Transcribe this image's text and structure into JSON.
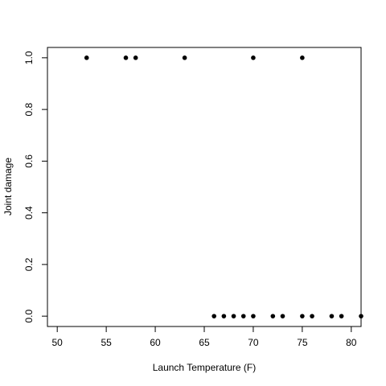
{
  "chart_data": {
    "type": "scatter",
    "title": "",
    "xlabel": "Launch Temperature (F)",
    "ylabel": "Joint damage",
    "xlim": [
      49,
      81
    ],
    "ylim": [
      -0.04,
      1.04
    ],
    "xticks": [
      50,
      55,
      60,
      65,
      70,
      75,
      80
    ],
    "yticks": [
      0.0,
      0.2,
      0.4,
      0.6,
      0.8,
      1.0
    ],
    "xtick_labels": [
      "50",
      "55",
      "60",
      "65",
      "70",
      "75",
      "80"
    ],
    "ytick_labels": [
      "0.0",
      "0.2",
      "0.4",
      "0.6",
      "0.8",
      "1.0"
    ],
    "grid": false,
    "legend": "none",
    "series": [
      {
        "x": [
          53,
          57,
          58,
          63,
          70,
          75,
          66,
          67,
          68,
          69,
          70,
          72,
          73,
          75,
          76,
          78,
          79,
          81
        ],
        "y": [
          1,
          1,
          1,
          1,
          1,
          1,
          0,
          0,
          0,
          0,
          0,
          0,
          0,
          0,
          0,
          0,
          0,
          0
        ]
      }
    ]
  }
}
